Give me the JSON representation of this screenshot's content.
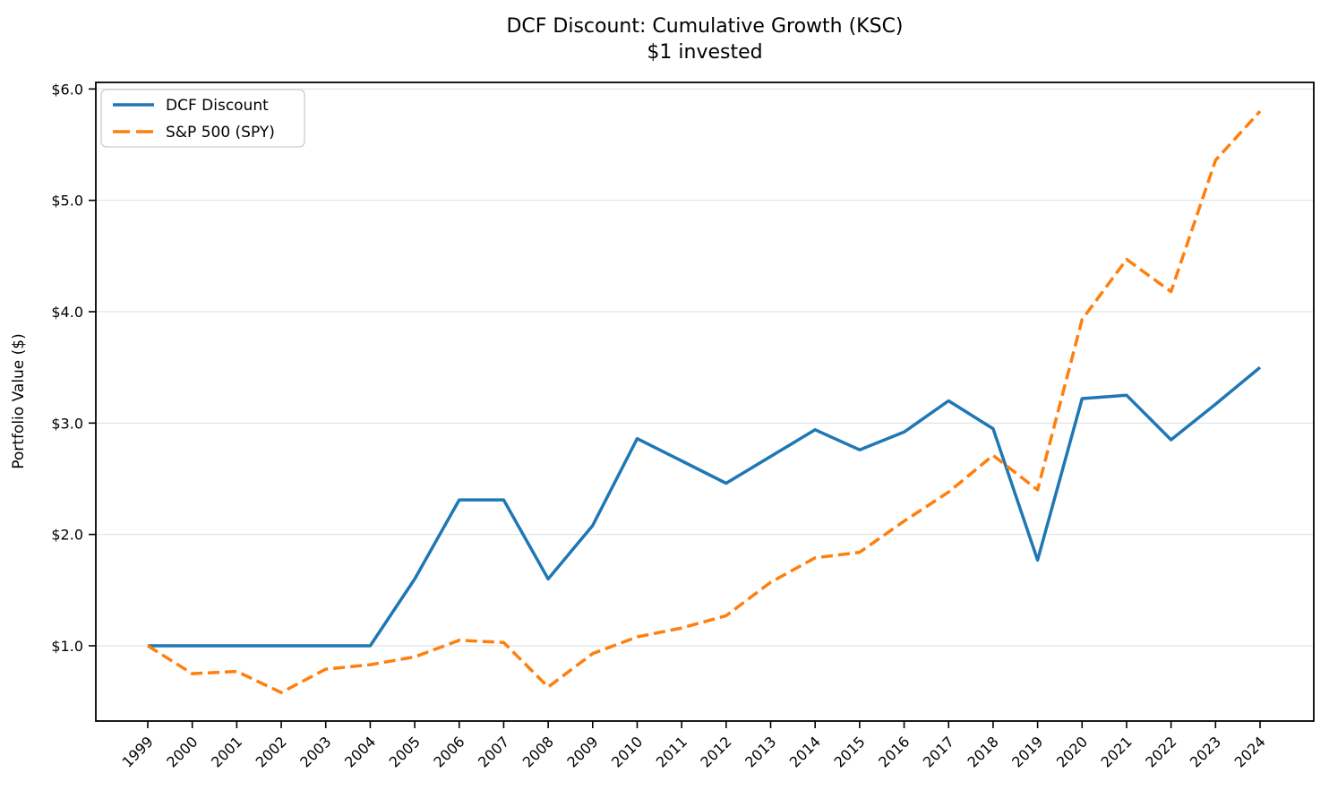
{
  "chart_data": {
    "type": "line",
    "title": "DCF Discount: Cumulative Growth (KSC)",
    "subtitle": "$1 invested",
    "xlabel": "",
    "ylabel": "Portfolio Value ($)",
    "x": [
      1999,
      2000,
      2001,
      2002,
      2003,
      2004,
      2005,
      2006,
      2007,
      2008,
      2009,
      2010,
      2011,
      2012,
      2013,
      2014,
      2015,
      2016,
      2017,
      2018,
      2019,
      2020,
      2021,
      2022,
      2023,
      2024
    ],
    "series": [
      {
        "name": "DCF Discount",
        "color": "#1f77b4",
        "style": "solid",
        "values": [
          1.0,
          1.0,
          1.0,
          1.0,
          1.0,
          1.0,
          1.6,
          2.31,
          2.31,
          1.6,
          2.08,
          2.86,
          2.66,
          2.46,
          2.7,
          2.94,
          2.76,
          2.92,
          3.2,
          2.95,
          1.77,
          3.22,
          3.25,
          2.85,
          3.17,
          3.5
        ]
      },
      {
        "name": "S&P 500 (SPY)",
        "color": "#ff7f0e",
        "style": "dashed",
        "values": [
          1.0,
          0.75,
          0.77,
          0.58,
          0.79,
          0.83,
          0.9,
          1.05,
          1.03,
          0.63,
          0.93,
          1.08,
          1.16,
          1.27,
          1.57,
          1.79,
          1.84,
          2.12,
          2.38,
          2.71,
          2.4,
          3.93,
          4.47,
          4.18,
          5.36,
          5.8
        ]
      }
    ],
    "ylim": [
      0.32,
      6.06
    ],
    "yticks": [
      1.0,
      2.0,
      3.0,
      4.0,
      5.0,
      6.0
    ],
    "ytick_labels": [
      "$1.0",
      "$2.0",
      "$3.0",
      "$4.0",
      "$5.0",
      "$6.0"
    ],
    "grid": "horizontal",
    "grid_color": "#e3e3e3",
    "legend_position": "upper left",
    "text_color": "#000000"
  }
}
